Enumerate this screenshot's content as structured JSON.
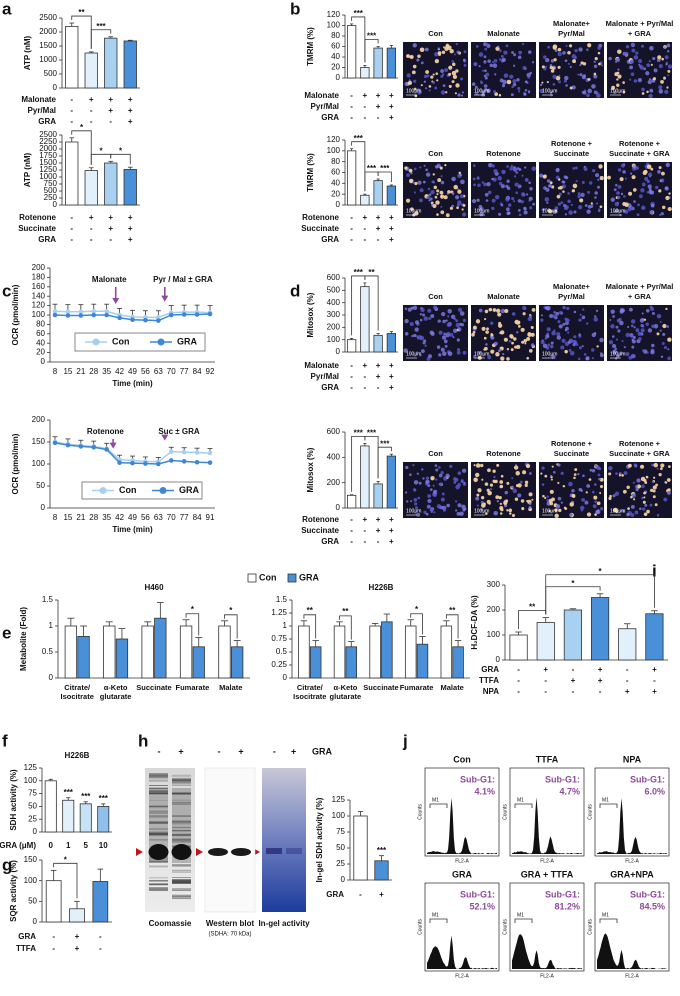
{
  "chart_data": [
    {
      "type": "bar",
      "panel": "a",
      "ylabel": "ATP (nM)",
      "ylim": [
        0,
        2500
      ],
      "yticks": [
        0,
        500,
        1000,
        1500,
        2000,
        2500
      ],
      "values": [
        2200,
        1250,
        1780,
        1680
      ],
      "errors": [
        120,
        40,
        50,
        25
      ],
      "colors": [
        "#ffffff",
        "#e2f0fb",
        "#a8d0f0",
        "#4a90d9"
      ],
      "conditions": [
        {
          "label": "Malonate",
          "marks": [
            "-",
            "+",
            "+",
            "+"
          ]
        },
        {
          "label": "Pyr/Mal",
          "marks": [
            "-",
            "-",
            "+",
            "+"
          ]
        },
        {
          "label": "GRA",
          "marks": [
            "-",
            "-",
            "-",
            "+"
          ]
        }
      ],
      "significance": [
        {
          "from": 0,
          "to": 1,
          "label": "**"
        },
        {
          "from": 1,
          "to": 2,
          "label": "***"
        }
      ]
    },
    {
      "type": "bar",
      "ylabel": "ATP (nM)",
      "ylim": [
        0,
        2500
      ],
      "yticks": [
        0,
        250,
        500,
        750,
        1000,
        1250,
        1500,
        1750,
        2000,
        2250,
        2500
      ],
      "values": [
        2250,
        1230,
        1500,
        1270
      ],
      "errors": [
        150,
        100,
        60,
        80
      ],
      "colors": [
        "#ffffff",
        "#e2f0fb",
        "#a8d0f0",
        "#4a90d9"
      ],
      "conditions": [
        {
          "label": "Rotenone",
          "marks": [
            "-",
            "+",
            "+",
            "+"
          ]
        },
        {
          "label": "Succinate",
          "marks": [
            "-",
            "-",
            "+",
            "+"
          ]
        },
        {
          "label": "GRA",
          "marks": [
            "-",
            "-",
            "-",
            "+"
          ]
        }
      ],
      "significance": [
        {
          "from": 0,
          "to": 1,
          "label": "*"
        },
        {
          "from": 1,
          "to": 2,
          "label": "*"
        },
        {
          "from": 2,
          "to": 3,
          "label": "*"
        }
      ]
    },
    {
      "type": "bar",
      "panel": "b",
      "ylabel": "TMRM (%)",
      "ylim": [
        0,
        120
      ],
      "yticks": [
        0,
        20,
        40,
        60,
        80,
        100,
        120
      ],
      "values": [
        100,
        20,
        57,
        57
      ],
      "errors": [
        3,
        4,
        3,
        5
      ],
      "colors": [
        "#ffffff",
        "#e2f0fb",
        "#a8d0f0",
        "#4a90d9"
      ],
      "conditions": [
        {
          "label": "Malonate",
          "marks": [
            "-",
            "+",
            "+",
            "+"
          ]
        },
        {
          "label": "Pyr/Mal",
          "marks": [
            "-",
            "-",
            "+",
            "+"
          ]
        },
        {
          "label": "GRA",
          "marks": [
            "-",
            "-",
            "-",
            "+"
          ]
        }
      ],
      "significance": [
        {
          "from": 0,
          "to": 1,
          "label": "***"
        },
        {
          "from": 1,
          "to": 2,
          "label": "***"
        }
      ],
      "images": [
        [
          "Con"
        ],
        [
          "Malonate"
        ],
        [
          "Malonate+",
          "Pyr/Mal"
        ],
        [
          "Malonate + Pyr/Mal",
          "+ GRA"
        ]
      ],
      "scale_bar": "100μm"
    },
    {
      "type": "bar",
      "ylabel": "TMRM (%)",
      "ylim": [
        0,
        120
      ],
      "yticks": [
        0,
        20,
        40,
        60,
        80,
        100,
        120
      ],
      "values": [
        100,
        18,
        45,
        35
      ],
      "errors": [
        4,
        2,
        3,
        2
      ],
      "colors": [
        "#ffffff",
        "#e2f0fb",
        "#a8d0f0",
        "#4a90d9"
      ],
      "conditions": [
        {
          "label": "Rotenone",
          "marks": [
            "-",
            "+",
            "+",
            "+"
          ]
        },
        {
          "label": "Succinate",
          "marks": [
            "-",
            "-",
            "+",
            "+"
          ]
        },
        {
          "label": "GRA",
          "marks": [
            "-",
            "-",
            "-",
            "+"
          ]
        }
      ],
      "significance": [
        {
          "from": 0,
          "to": 1,
          "label": "***"
        },
        {
          "from": 1,
          "to": 2,
          "label": "***"
        },
        {
          "from": 2,
          "to": 3,
          "label": "***"
        }
      ],
      "images": [
        [
          "Con"
        ],
        [
          "Rotenone"
        ],
        [
          "Rotenone +",
          "Succinate"
        ],
        [
          "Rotenone +",
          "Succinate + GRA"
        ]
      ],
      "scale_bar": "100μm"
    },
    {
      "type": "line",
      "panel": "c",
      "ylabel": "OCR (pmol/min)",
      "xlabel": "Time (min)",
      "ylim": [
        0,
        200
      ],
      "yticks": [
        0,
        20,
        40,
        60,
        80,
        100,
        120,
        140,
        160,
        180,
        200
      ],
      "categories": [
        8,
        15,
        21,
        28,
        35,
        42,
        49,
        56,
        63,
        70,
        77,
        84,
        92
      ],
      "series": [
        {
          "name": "Con",
          "color": "#a8cff0",
          "values": [
            108,
            107,
            107,
            108,
            108,
            100,
            96,
            95,
            95,
            105,
            106,
            106,
            105
          ],
          "errors": [
            15,
            15,
            15,
            15,
            15,
            14,
            14,
            14,
            14,
            15,
            15,
            15,
            15
          ]
        },
        {
          "name": "GRA",
          "color": "#3f86d6",
          "values": [
            100,
            99,
            99,
            100,
            100,
            94,
            90,
            89,
            88,
            100,
            101,
            101,
            102
          ]
        }
      ],
      "annotations": [
        "Malonate",
        "Pyr / Mal ± GRA"
      ]
    },
    {
      "type": "line",
      "ylabel": "OCR (pmol/min)",
      "xlabel": "Time (min)",
      "ylim": [
        0,
        200
      ],
      "yticks": [
        0,
        50,
        100,
        150,
        200
      ],
      "categories": [
        8,
        15,
        21,
        28,
        35,
        42,
        49,
        56,
        63,
        70,
        77,
        84,
        91
      ],
      "series": [
        {
          "name": "Con",
          "color": "#a8cff0",
          "values": [
            150,
            145,
            142,
            140,
            135,
            110,
            108,
            106,
            105,
            128,
            127,
            126,
            125
          ],
          "errors": [
            12,
            12,
            12,
            12,
            12,
            10,
            10,
            10,
            10,
            10,
            10,
            10,
            10
          ]
        },
        {
          "name": "GRA",
          "color": "#3f86d6",
          "values": [
            148,
            143,
            140,
            138,
            133,
            103,
            102,
            101,
            100,
            108,
            106,
            104,
            103
          ]
        }
      ],
      "annotations": [
        "Rotenone",
        "Suc ± GRA"
      ]
    },
    {
      "type": "bar",
      "panel": "d",
      "ylabel": "Mitosox (%)",
      "ylim": [
        0,
        600
      ],
      "yticks": [
        0,
        100,
        200,
        300,
        400,
        500,
        600
      ],
      "values": [
        100,
        530,
        135,
        150
      ],
      "errors": [
        10,
        30,
        15,
        15
      ],
      "colors": [
        "#ffffff",
        "#e2f0fb",
        "#a8d0f0",
        "#4a90d9"
      ],
      "conditions": [
        {
          "label": "Malonate",
          "marks": [
            "-",
            "+",
            "+",
            "+"
          ]
        },
        {
          "label": "Pyr/Mal",
          "marks": [
            "-",
            "-",
            "+",
            "+"
          ]
        },
        {
          "label": "GRA",
          "marks": [
            "-",
            "-",
            "-",
            "+"
          ]
        }
      ],
      "significance": [
        {
          "from": 0,
          "to": 1,
          "label": "***"
        },
        {
          "from": 1,
          "to": 2,
          "label": "**"
        }
      ],
      "images": [
        [
          "Con"
        ],
        [
          "Malonate"
        ],
        [
          "Malonate+",
          "Pyr/Mal"
        ],
        [
          "Malonate + Pyr/Mal",
          "+ GRA"
        ]
      ],
      "scale_bar": "100μm"
    },
    {
      "type": "bar",
      "ylabel": "Mitosox (%)",
      "ylim": [
        0,
        600
      ],
      "yticks": [
        0,
        200,
        400,
        600
      ],
      "values": [
        100,
        490,
        190,
        410
      ],
      "errors": [
        5,
        20,
        20,
        15
      ],
      "colors": [
        "#ffffff",
        "#e2f0fb",
        "#a8d0f0",
        "#4a90d9"
      ],
      "conditions": [
        {
          "label": "Rotenone",
          "marks": [
            "-",
            "+",
            "+",
            "+"
          ]
        },
        {
          "label": "Succinate",
          "marks": [
            "-",
            "-",
            "+",
            "+"
          ]
        },
        {
          "label": "GRA",
          "marks": [
            "-",
            "-",
            "-",
            "+"
          ]
        }
      ],
      "significance": [
        {
          "from": 0,
          "to": 1,
          "label": "***"
        },
        {
          "from": 1,
          "to": 2,
          "label": "***"
        },
        {
          "from": 2,
          "to": 3,
          "label": "***"
        }
      ],
      "images": [
        [
          "Con"
        ],
        [
          "Rotenone"
        ],
        [
          "Rotenone +",
          "Succinate"
        ],
        [
          "Rotenone +",
          "Succinate + GRA"
        ]
      ],
      "scale_bar": "100μm"
    },
    {
      "type": "grouped_bar",
      "panel": "e",
      "title": "H460",
      "ylabel": "Metabolite (Fold)",
      "ylim": [
        0,
        1.5
      ],
      "yticks": [
        0,
        0.5,
        1,
        1.5
      ],
      "categories": [
        [
          "Citrate/",
          "Isocitrate"
        ],
        [
          "α-Keto",
          "glutarate"
        ],
        [
          "Succinate"
        ],
        [
          "Fumarate"
        ],
        [
          "Malate"
        ]
      ],
      "series": [
        {
          "name": "Con",
          "color": "#ffffff",
          "values": [
            1.0,
            1.0,
            1.0,
            1.0,
            1.0
          ],
          "errors": [
            0.15,
            0.08,
            0.08,
            0.12,
            0.1
          ]
        },
        {
          "name": "GRA",
          "color": "#4a90d9",
          "values": [
            0.8,
            0.75,
            1.15,
            0.6,
            0.6
          ],
          "errors": [
            0.2,
            0.2,
            0.3,
            0.18,
            0.12
          ]
        }
      ],
      "significance": [
        {
          "at": 3,
          "label": "*"
        },
        {
          "at": 4,
          "label": "*"
        }
      ]
    },
    {
      "type": "grouped_bar",
      "title": "H226B",
      "ylim": [
        0,
        1.5
      ],
      "yticks": [
        0,
        0.25,
        0.5,
        0.75,
        1,
        1.25,
        1.5
      ],
      "categories": [
        [
          "Citrate/",
          "Isocitrate"
        ],
        [
          "α-Keto",
          "glutarate"
        ],
        [
          "Succinate"
        ],
        [
          "Fumarate"
        ],
        [
          "Malate"
        ]
      ],
      "series": [
        {
          "color": "#ffffff",
          "values": [
            1.0,
            1.0,
            1.0,
            1.0,
            1.0
          ],
          "errors": [
            0.1,
            0.08,
            0.05,
            0.12,
            0.1
          ]
        },
        {
          "color": "#4a90d9",
          "values": [
            0.6,
            0.6,
            1.08,
            0.65,
            0.6
          ],
          "errors": [
            0.12,
            0.1,
            0.15,
            0.15,
            0.12
          ]
        }
      ],
      "significance": [
        {
          "at": 0,
          "label": "**"
        },
        {
          "at": 1,
          "label": "**"
        },
        {
          "at": 3,
          "label": "*"
        },
        {
          "at": 4,
          "label": "**"
        }
      ]
    },
    {
      "type": "bar",
      "panel": "i",
      "ylabel": "H₂DCF-DA (%)",
      "ylim": [
        0,
        300
      ],
      "yticks": [
        0,
        100,
        200,
        300
      ],
      "values": [
        100,
        150,
        200,
        250,
        125,
        185
      ],
      "errors": [
        12,
        20,
        5,
        15,
        20,
        12
      ],
      "colors": [
        "#ffffff",
        "#e2f0fb",
        "#a8d0f0",
        "#4a90d9",
        "#e2f0fb",
        "#4a90d9"
      ],
      "conditions": [
        {
          "label": "GRA",
          "marks": [
            "-",
            "+",
            "-",
            "+",
            "-",
            "+"
          ]
        },
        {
          "label": "TTFA",
          "marks": [
            "-",
            "-",
            "+",
            "+",
            "-",
            "-"
          ]
        },
        {
          "label": "NPA",
          "marks": [
            "-",
            "-",
            "-",
            "-",
            "+",
            "+"
          ]
        }
      ],
      "significance": [
        {
          "from": 0,
          "to": 1,
          "label": "**"
        },
        {
          "from": 1,
          "to": 3,
          "label": "*"
        },
        {
          "from": 1,
          "to": 5,
          "label": "*"
        }
      ]
    },
    {
      "type": "bar",
      "panel": "f",
      "title": "H226B",
      "ylabel": "SDH activity (%)",
      "ylim": [
        0,
        125
      ],
      "yticks": [
        0,
        25,
        50,
        75,
        100,
        125
      ],
      "values": [
        100,
        62,
        55,
        50
      ],
      "errors": [
        3,
        5,
        4,
        5
      ],
      "colors": [
        "#ffffff",
        "#e2f0fb",
        "#c7e1f6",
        "#8fc0ea"
      ],
      "conditions": [
        {
          "label": "GRA (μM)",
          "marks": [
            "0",
            "1",
            "5",
            "10"
          ]
        }
      ],
      "significance": [
        {
          "at": 1,
          "label": "***"
        },
        {
          "at": 2,
          "label": "***"
        },
        {
          "at": 3,
          "label": "***"
        }
      ]
    },
    {
      "type": "bar",
      "panel": "g",
      "ylabel": "SQR activity (%)",
      "ylim": [
        0,
        150
      ],
      "yticks": [
        0,
        50,
        100,
        150
      ],
      "values": [
        100,
        32,
        98
      ],
      "errors": [
        25,
        18,
        30
      ],
      "colors": [
        "#ffffff",
        "#e2f0fb",
        "#4a90d9"
      ],
      "conditions": [
        {
          "label": "GRA",
          "marks": [
            "-",
            "+",
            "-"
          ]
        },
        {
          "label": "TTFA",
          "marks": [
            "-",
            "+",
            "-"
          ]
        }
      ],
      "significance": [
        {
          "from": 0,
          "to": 1,
          "label": "*"
        }
      ]
    },
    {
      "type": "bar",
      "ylabel": "In-gel SDH activity (%)",
      "ylim": [
        0,
        125
      ],
      "yticks": [
        0,
        25,
        50,
        75,
        100,
        125
      ],
      "values": [
        100,
        30
      ],
      "errors": [
        7,
        8
      ],
      "colors": [
        "#ffffff",
        "#4a90d9"
      ],
      "conditions": [
        {
          "label": "GRA",
          "marks": [
            "-",
            "+"
          ]
        }
      ],
      "significance": [
        {
          "at": 1,
          "label": "***"
        }
      ]
    }
  ],
  "gel_panel": {
    "panel": "h",
    "lanes": [
      "-",
      "+"
    ],
    "treatment": "GRA",
    "captions": [
      "Coomassie",
      "Western blot",
      "In-gel activity"
    ],
    "subcaption": "(SDHA: 70 kDa)"
  },
  "flow_panel": {
    "panel": "j",
    "y_label": "Counts",
    "x_label": "FL2-A",
    "gate": "M1",
    "sub_g1_label": "Sub-G1:",
    "plots": [
      {
        "title": "Con",
        "sub_g1": "4.1%"
      },
      {
        "title": "TTFA",
        "sub_g1": "4.7%"
      },
      {
        "title": "NPA",
        "sub_g1": "6.0%"
      },
      {
        "title": "GRA",
        "sub_g1": "52.1%"
      },
      {
        "title": "GRA + TTFA",
        "sub_g1": "81.2%"
      },
      {
        "title": "GRA+NPA",
        "sub_g1": "84.5%"
      }
    ]
  }
}
